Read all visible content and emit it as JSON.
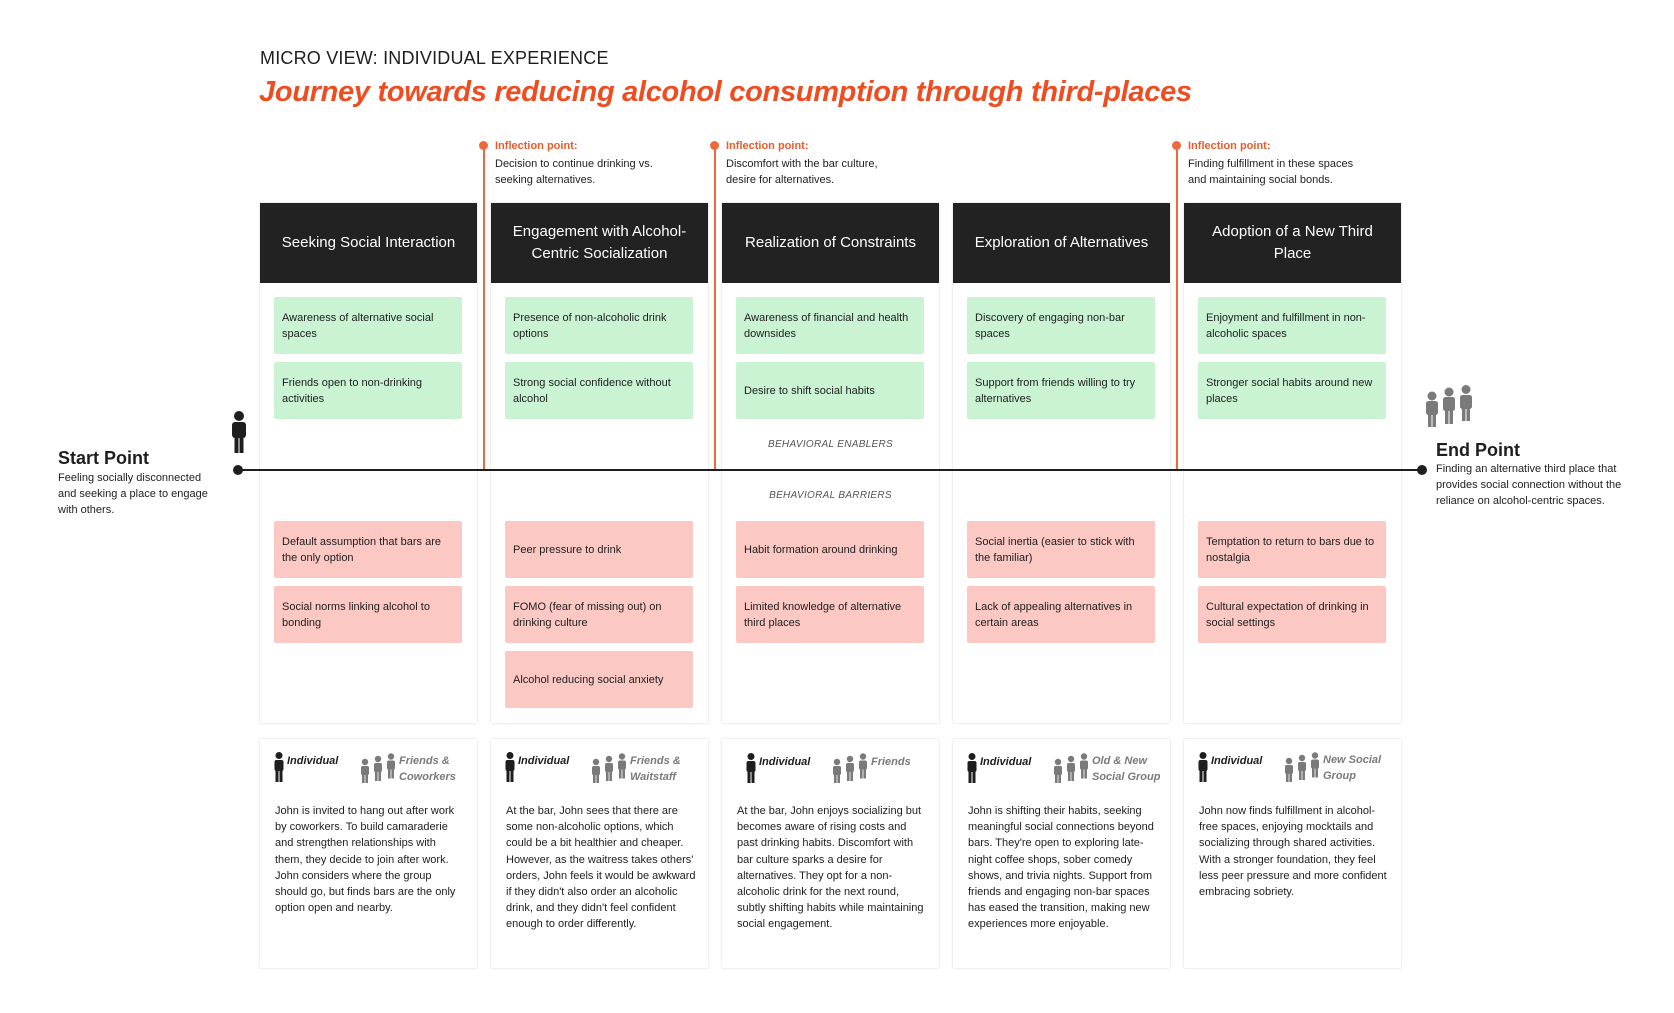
{
  "header": {
    "subtitle": "MICRO VIEW: INDIVIDUAL EXPERIENCE",
    "title": "Journey towards reducing alcohol consumption through third-places"
  },
  "start": {
    "title": "Start Point",
    "description": "Feeling socially disconnected and seeking a place to engage with others."
  },
  "end": {
    "title": "End Point",
    "description": "Finding an alternative third place  that provides social connection without the reliance on alcohol-centric spaces."
  },
  "section_labels": {
    "enablers": "BEHAVIORAL ENABLERS",
    "barriers": "BEHAVIORAL BARRIERS"
  },
  "inflection_points": [
    {
      "label": "Inflection point:",
      "text": "Decision to continue drinking vs. seeking alternatives."
    },
    {
      "label": "Inflection point:",
      "text": "Discomfort with the bar culture, desire for alternatives."
    },
    {
      "label": "Inflection point:",
      "text": "Finding fulfillment in these spaces and maintaining social bonds."
    }
  ],
  "stages": [
    {
      "title": "Seeking Social Interaction",
      "enablers": [
        "Awareness of alternative social spaces",
        "Friends open to non-drinking activities"
      ],
      "barriers": [
        "Default assumption that bars are the only option",
        "Social norms linking alcohol to bonding"
      ],
      "persona_individual": "Individual",
      "persona_group": "Friends & Coworkers",
      "story": "John is invited to hang out after work by coworkers. To build camaraderie and strengthen relationships with them, they decide to join after work. John considers where the group should go, but finds bars are the only option open and nearby."
    },
    {
      "title": "Engagement with Alcohol-Centric Socialization",
      "enablers": [
        "Presence of non-alcoholic drink options",
        "Strong social confidence without alcohol"
      ],
      "barriers": [
        "Peer pressure to drink",
        "FOMO (fear of missing out) on drinking culture",
        "Alcohol reducing social anxiety"
      ],
      "persona_individual": "Individual",
      "persona_group": "Friends & Waitstaff",
      "story": "At the bar, John sees that there are some non-alcoholic options, which could be a bit healthier and cheaper. However, as the waitress takes others' orders, John feels it would be awkward if they didn't also order an alcoholic drink, and they didn't feel confident enough to order differently."
    },
    {
      "title": "Realization of Constraints",
      "enablers": [
        "Awareness of financial and health downsides",
        "Desire to shift social habits"
      ],
      "barriers": [
        "Habit formation around drinking",
        "Limited knowledge of alternative third places"
      ],
      "persona_individual": "Individual",
      "persona_group": "Friends",
      "story": "At the bar, John enjoys socializing but becomes aware of rising costs and past drinking habits. Discomfort with bar culture sparks a desire for alternatives. They opt for a non-alcoholic drink for the next round, subtly shifting habits while maintaining social engagement."
    },
    {
      "title": "Exploration of Alternatives",
      "enablers": [
        "Discovery of engaging non-bar spaces",
        "Support from friends willing to try alternatives"
      ],
      "barriers": [
        "Social inertia (easier to stick with the familiar)",
        "Lack of appealing alternatives in certain areas"
      ],
      "persona_individual": "Individual",
      "persona_group": "Old & New Social Group",
      "story": "John is shifting their habits, seeking meaningful social connections beyond bars. They're open to exploring late-night coffee shops, sober comedy shows, and trivia nights. Support from friends and engaging non-bar spaces has eased the transition, making new experiences more enjoyable."
    },
    {
      "title": "Adoption of a New Third Place",
      "enablers": [
        "Enjoyment and fulfillment in non-alcoholic spaces",
        "Stronger social habits around new places"
      ],
      "barriers": [
        "Temptation to return to bars due to nostalgia",
        "Cultural expectation of drinking in social settings"
      ],
      "persona_individual": "Individual",
      "persona_group": "New Social Group",
      "story": "John now finds fulfillment in alcohol-free spaces, enjoying mocktails and socializing through shared activities. With a stronger foundation, they feel less peer pressure and more confident embracing sobriety."
    }
  ],
  "colors": {
    "accent": "#ee4d22",
    "enabler": "#c9f3d2",
    "barrier": "#fbc8c4",
    "header": "#222222"
  },
  "icons": {
    "individual": "person-icon",
    "group": "group-icon"
  }
}
